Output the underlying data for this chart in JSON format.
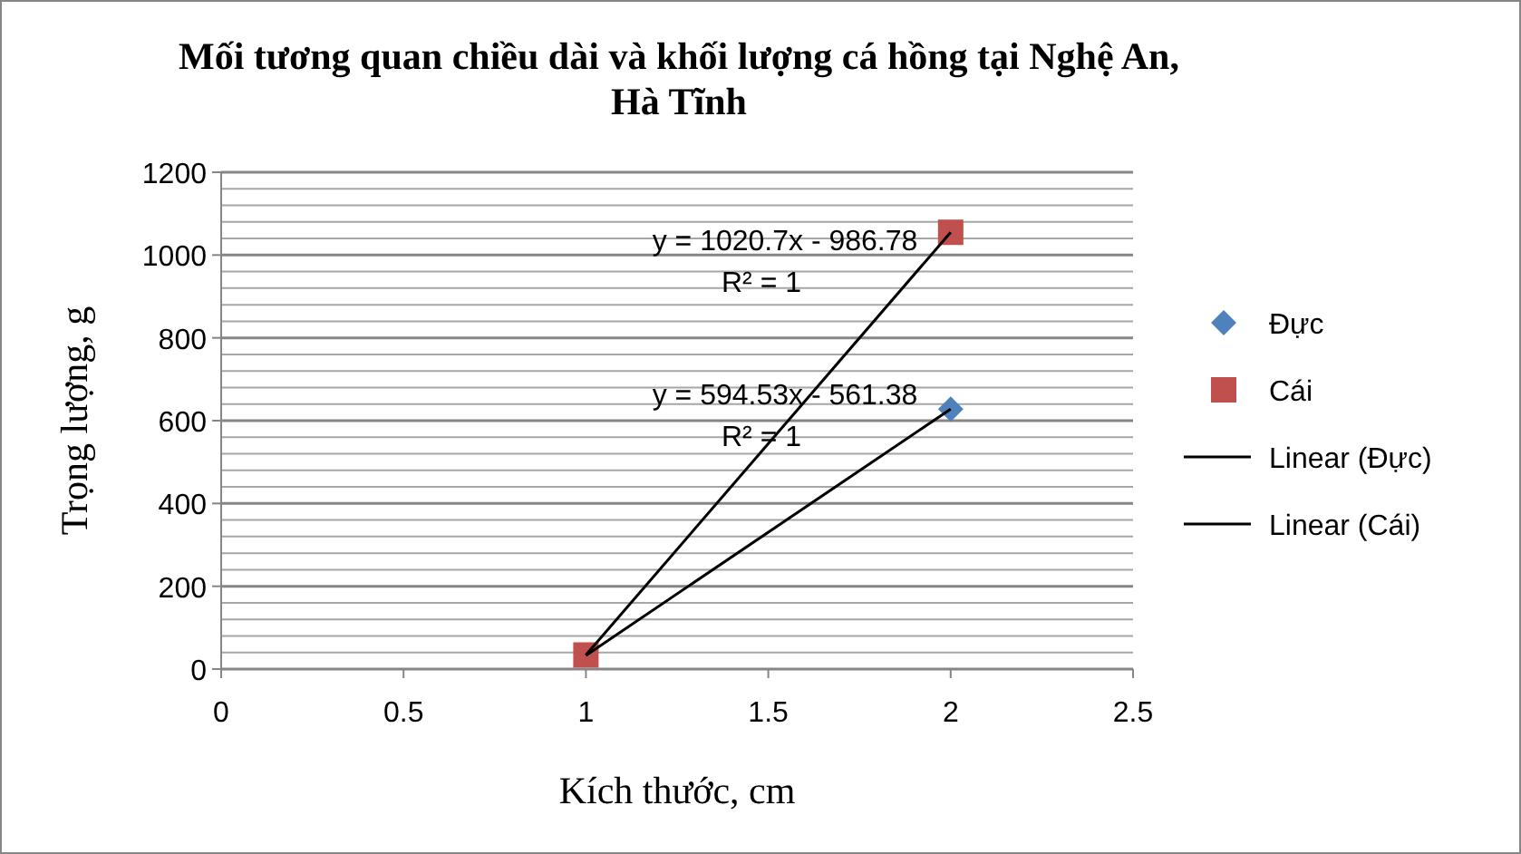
{
  "chart_data": {
    "type": "scatter",
    "title": "Mối tương quan chiều dài và khối lượng cá hồng tại Nghệ An, Hà Tĩnh",
    "xlabel": "Kích thước, cm",
    "ylabel": "Trọng lượng, g",
    "xlim": [
      0,
      2.5
    ],
    "xticks": [
      0,
      0.5,
      1,
      1.5,
      2,
      2.5
    ],
    "ylim": [
      0,
      1200
    ],
    "yticks": [
      0,
      {
        "value": 40,
        "label": null
      },
      {
        "value": 80,
        "label": null
      },
      {
        "value": 120,
        "label": null
      },
      {
        "value": 160,
        "label": null
      },
      200,
      {
        "value": 240,
        "label": null
      },
      {
        "value": 280,
        "label": null
      },
      {
        "value": 320,
        "label": null
      },
      {
        "value": 360,
        "label": null
      },
      400,
      {
        "value": 440,
        "label": null
      },
      {
        "value": 480,
        "label": null
      },
      {
        "value": 520,
        "label": null
      },
      {
        "value": 560,
        "label": null
      },
      600,
      {
        "value": 640,
        "label": null
      },
      {
        "value": 680,
        "label": null
      },
      {
        "value": 720,
        "label": null
      },
      {
        "value": 760,
        "label": null
      },
      800,
      {
        "value": 840,
        "label": null
      },
      {
        "value": 880,
        "label": null
      },
      {
        "value": 920,
        "label": null
      },
      {
        "value": 960,
        "label": null
      },
      1000,
      {
        "value": 1040,
        "label": null
      },
      {
        "value": 1080,
        "label": null
      },
      {
        "value": 1120,
        "label": null
      },
      {
        "value": 1160,
        "label": null
      },
      1200
    ],
    "grid": "y",
    "legend": "right",
    "x": [
      1,
      2
    ],
    "series": [
      {
        "name": "Đực",
        "marker": "diamond",
        "color": "#4f81bd",
        "values": [
          null,
          628
        ]
      },
      {
        "name": "Cái",
        "marker": "square",
        "color": "#c0504d",
        "values": [
          34,
          1055
        ]
      },
      {
        "name": "Linear (Đực)",
        "type": "line",
        "marker": "none",
        "color": "#000000",
        "values": [
          33,
          628
        ]
      },
      {
        "name": "Linear (Cái)",
        "type": "line",
        "marker": "none",
        "color": "#000000",
        "values": [
          34,
          1055
        ]
      }
    ],
    "annotations": [
      "y = 1020.7x - 986.78",
      "R² = 1",
      "y = 594.53x - 561.38",
      "R² = 1"
    ]
  }
}
